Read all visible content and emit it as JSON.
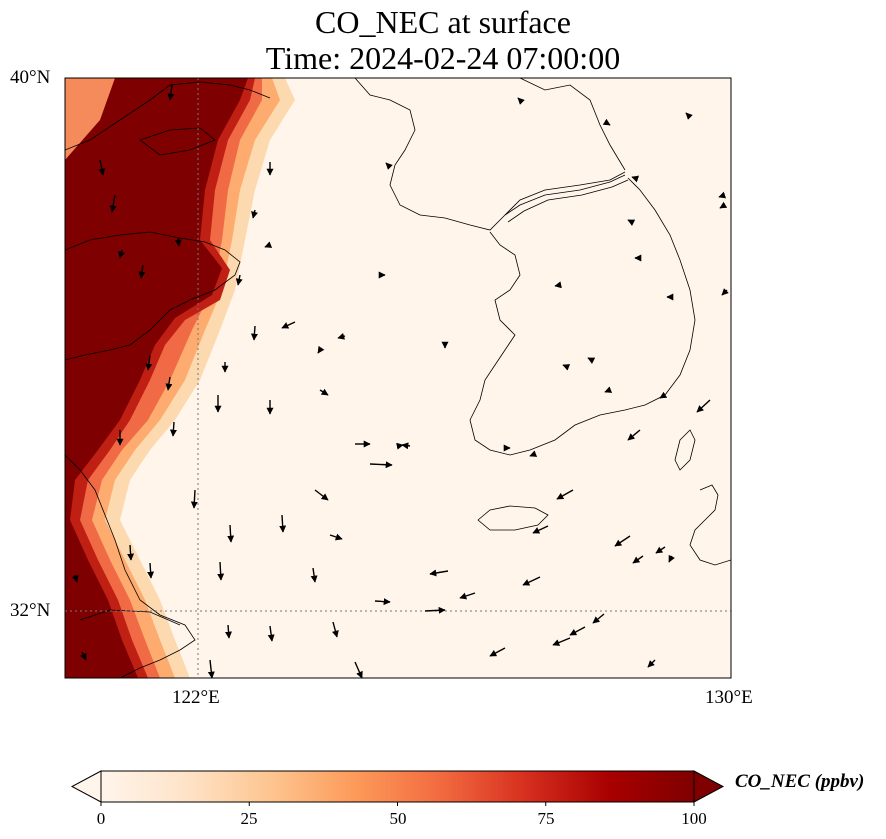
{
  "title": {
    "line1": "CO_NEC at surface",
    "line2": "Time: 2024-02-24 07:00:00"
  },
  "map": {
    "extent": {
      "lon_min": 120.0,
      "lon_max": 130.0,
      "lat_min": 31.0,
      "lat_max": 40.0
    },
    "lat_ticks": [
      {
        "value": 40,
        "label": "40°N"
      },
      {
        "value": 32,
        "label": "32°N"
      }
    ],
    "lon_ticks": [
      {
        "value": 122,
        "label": "122°E"
      },
      {
        "value": 130,
        "label": "130°E"
      }
    ],
    "gridlines": [
      {
        "type": "lon",
        "value": 122
      },
      {
        "type": "lat",
        "value": 32
      }
    ],
    "field_colors": {
      "background": "#fff5eb",
      "max": "#7f0000"
    }
  },
  "colorbar": {
    "label": "CO_NEC (ppbv)",
    "min": 0,
    "max": 100,
    "extend": "both",
    "ticks": [
      {
        "value": 0,
        "label": "0"
      },
      {
        "value": 25,
        "label": "25"
      },
      {
        "value": 50,
        "label": "50"
      },
      {
        "value": 75,
        "label": "75"
      },
      {
        "value": 100,
        "label": "100"
      }
    ],
    "stops": [
      "#fff5eb",
      "#fee3c8",
      "#fdc590",
      "#fd9a5a",
      "#f26b40",
      "#d7301f",
      "#a80000",
      "#7f0000"
    ]
  }
}
